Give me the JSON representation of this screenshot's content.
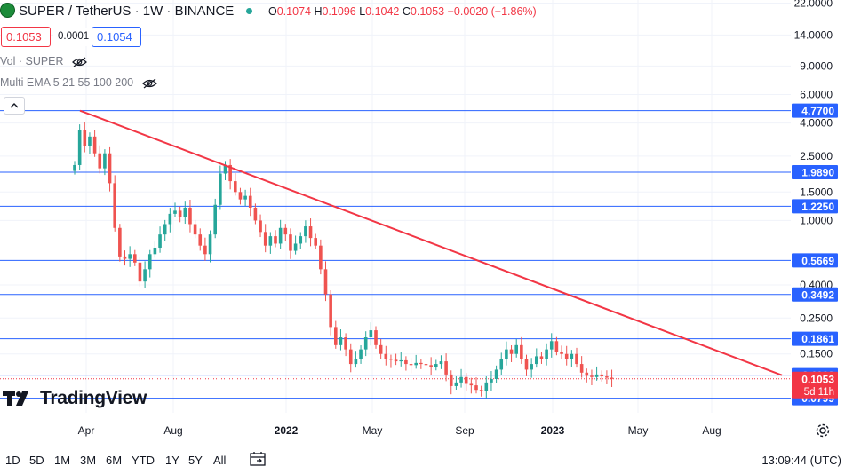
{
  "header": {
    "symbol": "SUPER / TetherUS · 1W · BINANCE",
    "ohlc": {
      "open_label": "O",
      "open": "0.1074",
      "high_label": "H",
      "high": "0.1096",
      "low_label": "L",
      "low": "0.1042",
      "close_label": "C",
      "close": "0.1053",
      "change": "−0.0020 (−1.86%)"
    }
  },
  "trade": {
    "sell_price": "0.1053",
    "spread": "0.0001",
    "buy_price": "0.1054"
  },
  "indicators": [
    {
      "label": "Vol · SUPER"
    },
    {
      "label": "Multi EMA 5 21 55 100 200"
    }
  ],
  "colors": {
    "up": "#26a69a",
    "down": "#ef5350",
    "level": "#2962ff",
    "trend": "#f23645",
    "grid": "#f0f3fa"
  },
  "chart_data": {
    "type": "candlestick",
    "title": "SUPER / TetherUS · 1W · BINANCE",
    "scale": "log",
    "ylim": [
      0.065,
      23
    ],
    "y_ticks": [
      "22.0000",
      "14.0000",
      "9.0000",
      "6.0000",
      "4.0000",
      "2.5000",
      "1.5000",
      "1.0000",
      "0.4000",
      "0.2500",
      "0.1500"
    ],
    "x_ticks": [
      "Apr",
      "Aug",
      "2022",
      "May",
      "Sep",
      "2023",
      "May",
      "Aug"
    ],
    "horizontal_levels": [
      "4.7700",
      "1.9890",
      "1.2250",
      "0.5669",
      "0.3492",
      "0.1861",
      "0.1109",
      "0.0799"
    ],
    "last_price": "0.1053",
    "countdown": "5d 11h",
    "trendline": {
      "from": "4.77",
      "to": "0.1109"
    },
    "series": [
      {
        "name": "SUPER/USDT close (approx., weekly)",
        "values": [
          2.2,
          3.6,
          2.9,
          3.3,
          2.6,
          2.1,
          2.6,
          1.7,
          0.9,
          0.6,
          0.58,
          0.62,
          0.55,
          0.42,
          0.5,
          0.62,
          0.68,
          0.82,
          0.95,
          1.1,
          1.15,
          1.05,
          1.2,
          0.95,
          0.82,
          0.7,
          0.62,
          0.82,
          1.25,
          1.95,
          2.2,
          1.75,
          1.5,
          1.35,
          1.42,
          1.2,
          1.0,
          0.85,
          0.7,
          0.8,
          0.72,
          0.9,
          0.82,
          0.65,
          0.72,
          0.8,
          0.92,
          0.78,
          0.7,
          0.5,
          0.35,
          0.22,
          0.17,
          0.19,
          0.16,
          0.13,
          0.14,
          0.16,
          0.19,
          0.21,
          0.17,
          0.15,
          0.14,
          0.138,
          0.135,
          0.137,
          0.13,
          0.128,
          0.132,
          0.13,
          0.128,
          0.125,
          0.13,
          0.135,
          0.112,
          0.095,
          0.1,
          0.108,
          0.098,
          0.096,
          0.09,
          0.088,
          0.1,
          0.105,
          0.12,
          0.14,
          0.16,
          0.15,
          0.17,
          0.14,
          0.12,
          0.13,
          0.145,
          0.14,
          0.16,
          0.18,
          0.155,
          0.15,
          0.14,
          0.15,
          0.13,
          0.115,
          0.11,
          0.108,
          0.112,
          0.109,
          0.107,
          0.1053
        ]
      }
    ]
  },
  "bottom": {
    "ranges": [
      "1D",
      "5D",
      "1M",
      "3M",
      "6M",
      "YTD",
      "1Y",
      "5Y",
      "All"
    ],
    "clock": "13:09:44 (UTC)"
  },
  "logo": {
    "text": "TradingView"
  }
}
